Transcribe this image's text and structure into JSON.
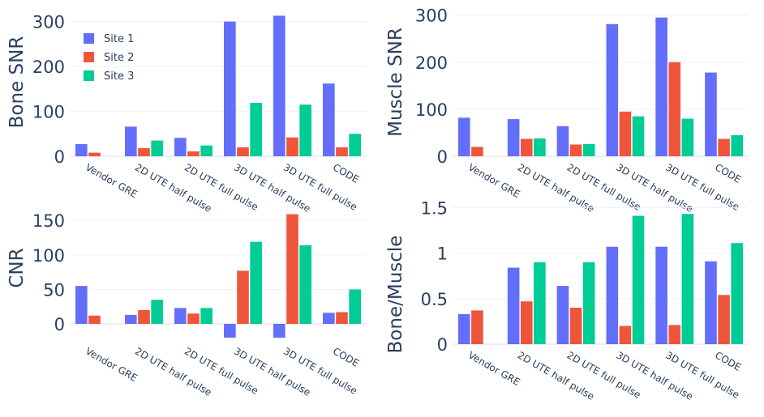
{
  "chart_data": [
    {
      "type": "bar",
      "ylabel": "Bone SNR",
      "categories": [
        "Vendor GRE",
        "2D UTE half pulse",
        "2D UTE full pulse",
        "3D UTE half pulse",
        "3D UTE full pulse",
        "CODE"
      ],
      "ylim": [
        -5,
        330
      ],
      "yticks": [
        0,
        100,
        200,
        300
      ],
      "ytick_labels": [
        "0",
        "100",
        "200",
        "300"
      ],
      "series": [
        {
          "name": "Site 1",
          "values": [
            27,
            66,
            41,
            300,
            313,
            162
          ]
        },
        {
          "name": "Site 2",
          "values": [
            8,
            18,
            11,
            20,
            42,
            20
          ]
        },
        {
          "name": "Site 3",
          "values": [
            null,
            35,
            24,
            119,
            115,
            50
          ]
        }
      ],
      "legend": "top-left"
    },
    {
      "type": "bar",
      "ylabel": "Muscle SNR",
      "categories": [
        "Vendor GRE",
        "2D UTE half pulse",
        "2D UTE full pulse",
        "3D UTE half pulse",
        "3D UTE full pulse",
        "CODE"
      ],
      "ylim": [
        -5,
        315
      ],
      "yticks": [
        0,
        100,
        200,
        300
      ],
      "ytick_labels": [
        "0",
        "100",
        "200",
        "300"
      ],
      "series": [
        {
          "name": "Site 1",
          "values": [
            82,
            79,
            64,
            281,
            295,
            178
          ]
        },
        {
          "name": "Site 2",
          "values": [
            20,
            37,
            25,
            95,
            200,
            37
          ]
        },
        {
          "name": "Site 3",
          "values": [
            null,
            38,
            26,
            85,
            80,
            45
          ]
        }
      ]
    },
    {
      "type": "bar",
      "ylabel": "CNR",
      "categories": [
        "Vendor GRE",
        "2D UTE half pulse",
        "2D UTE full pulse",
        "3D UTE half pulse",
        "3D UTE full pulse",
        "CODE"
      ],
      "ylim": [
        -22,
        162
      ],
      "yticks": [
        0,
        50,
        100,
        150
      ],
      "ytick_labels": [
        "0",
        "50",
        "100",
        "150"
      ],
      "series": [
        {
          "name": "Site 1",
          "values": [
            55,
            13,
            23,
            -20,
            -20,
            16
          ]
        },
        {
          "name": "Site 2",
          "values": [
            12,
            20,
            15,
            77,
            159,
            17
          ]
        },
        {
          "name": "Site 3",
          "values": [
            null,
            35,
            23,
            119,
            114,
            50
          ]
        }
      ]
    },
    {
      "type": "bar",
      "ylabel": "Bone/Muscle",
      "categories": [
        "Vendor GRE",
        "2D UTE half pulse",
        "2D UTE full pulse",
        "3D UTE half pulse",
        "3D UTE full pulse",
        "CODE"
      ],
      "ylim": [
        -0.02,
        1.45
      ],
      "yticks": [
        0,
        0.5,
        1,
        1.5
      ],
      "ytick_labels": [
        "0",
        "0.5",
        "1",
        "1.5"
      ],
      "series": [
        {
          "name": "Site 1",
          "values": [
            0.33,
            0.84,
            0.64,
            1.07,
            1.07,
            0.91
          ]
        },
        {
          "name": "Site 2",
          "values": [
            0.37,
            0.47,
            0.4,
            0.2,
            0.21,
            0.54
          ]
        },
        {
          "name": "Site 3",
          "values": [
            null,
            0.9,
            0.9,
            1.41,
            1.43,
            1.11
          ]
        }
      ]
    }
  ],
  "legend": {
    "items": [
      {
        "label": "Site 1",
        "color": "#636efa"
      },
      {
        "label": "Site 2",
        "color": "#ef553b"
      },
      {
        "label": "Site 3",
        "color": "#00cc96"
      }
    ]
  }
}
